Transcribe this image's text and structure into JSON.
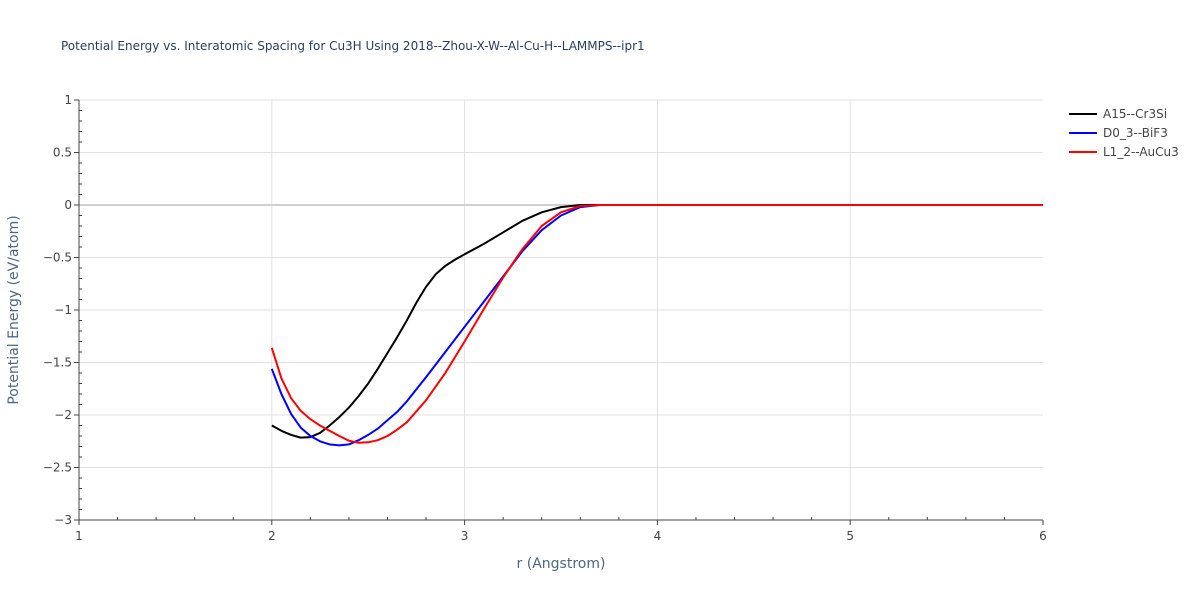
{
  "chart_data": {
    "type": "line",
    "title": "Potential Energy vs. Interatomic Spacing for Cu3H Using 2018--Zhou-X-W--Al-Cu-H--LAMMPS--ipr1",
    "xlabel": "r (Angstrom)",
    "ylabel": "Potential Energy (eV/atom)",
    "xlim": [
      1,
      6
    ],
    "ylim": [
      -3,
      1
    ],
    "xticks": [
      "1",
      "2",
      "3",
      "4",
      "5",
      "6"
    ],
    "yticks": [
      "1",
      "0.5",
      "0",
      "−0.5",
      "−1",
      "−1.5",
      "−2",
      "−2.5",
      "−3"
    ],
    "grid": true,
    "legend_position": "top-right",
    "series": [
      {
        "name": "A15--Cr3Si",
        "color": "#000000",
        "x": [
          2.0,
          2.05,
          2.1,
          2.15,
          2.2,
          2.25,
          2.3,
          2.35,
          2.4,
          2.45,
          2.5,
          2.55,
          2.6,
          2.65,
          2.7,
          2.75,
          2.8,
          2.85,
          2.9,
          2.95,
          3.0,
          3.1,
          3.2,
          3.3,
          3.4,
          3.5,
          3.6,
          3.7,
          3.8,
          4.0,
          5.0,
          6.0
        ],
        "y": [
          -2.1,
          -2.15,
          -2.19,
          -2.215,
          -2.21,
          -2.17,
          -2.1,
          -2.02,
          -1.93,
          -1.82,
          -1.7,
          -1.56,
          -1.41,
          -1.26,
          -1.1,
          -0.93,
          -0.78,
          -0.66,
          -0.58,
          -0.52,
          -0.47,
          -0.37,
          -0.26,
          -0.15,
          -0.07,
          -0.02,
          0.0,
          0.0,
          0.0,
          0.0,
          0.0,
          0.0
        ]
      },
      {
        "name": "D0_3--BiF3",
        "color": "#0000ff",
        "x": [
          2.0,
          2.05,
          2.1,
          2.15,
          2.2,
          2.25,
          2.3,
          2.35,
          2.4,
          2.45,
          2.5,
          2.55,
          2.6,
          2.65,
          2.7,
          2.8,
          2.9,
          3.0,
          3.1,
          3.2,
          3.3,
          3.4,
          3.5,
          3.6,
          3.7,
          3.8,
          4.0,
          5.0,
          6.0
        ],
        "y": [
          -1.56,
          -1.8,
          -1.99,
          -2.12,
          -2.2,
          -2.25,
          -2.28,
          -2.29,
          -2.28,
          -2.24,
          -2.19,
          -2.13,
          -2.05,
          -1.97,
          -1.87,
          -1.64,
          -1.4,
          -1.16,
          -0.92,
          -0.68,
          -0.44,
          -0.24,
          -0.1,
          -0.02,
          0.0,
          0.0,
          0.0,
          0.0,
          0.0
        ]
      },
      {
        "name": "L1_2--AuCu3",
        "color": "#ff0000",
        "x": [
          2.0,
          2.05,
          2.1,
          2.15,
          2.2,
          2.25,
          2.3,
          2.35,
          2.4,
          2.45,
          2.5,
          2.55,
          2.6,
          2.65,
          2.7,
          2.8,
          2.9,
          3.0,
          3.1,
          3.2,
          3.3,
          3.4,
          3.5,
          3.6,
          3.7,
          3.8,
          4.0,
          5.0,
          6.0
        ],
        "y": [
          -1.36,
          -1.65,
          -1.84,
          -1.96,
          -2.04,
          -2.1,
          -2.15,
          -2.2,
          -2.245,
          -2.265,
          -2.26,
          -2.24,
          -2.2,
          -2.14,
          -2.07,
          -1.86,
          -1.6,
          -1.3,
          -0.99,
          -0.69,
          -0.42,
          -0.2,
          -0.07,
          -0.01,
          0.0,
          0.0,
          0.0,
          0.0,
          0.0
        ]
      }
    ]
  }
}
